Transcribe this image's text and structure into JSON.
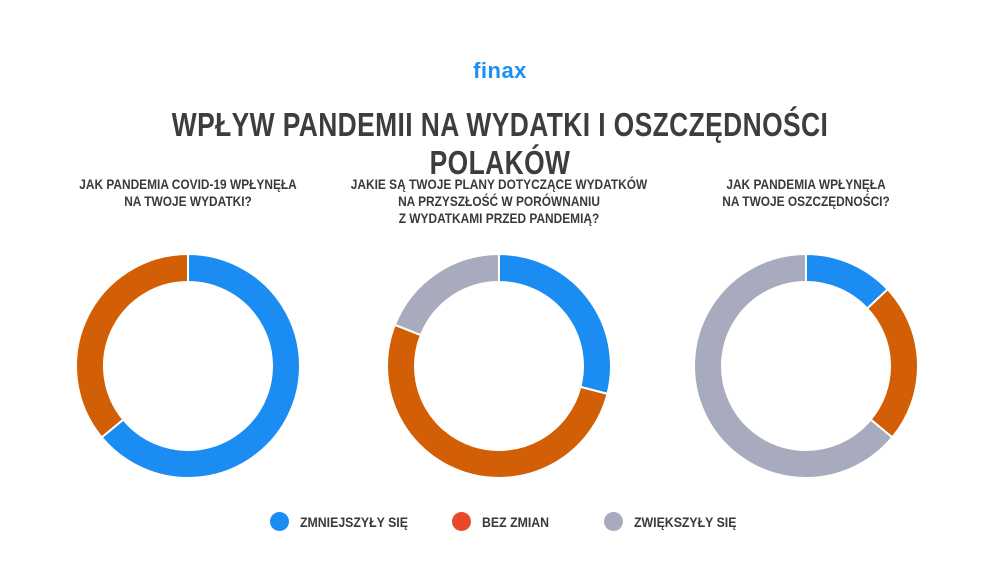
{
  "logo": "finax",
  "title": "WPŁYW PANDEMII NA WYDATKI I OSZCZĘDNOŚCI POLAKÓW",
  "colors": {
    "zmniejszyly": "#1a8cf2",
    "bez_zmian": "#d25f05",
    "zwiekszyly": "#a8abbd"
  },
  "legend": [
    {
      "label": "ZMNIEJSZYŁY SIĘ",
      "color": "#1a8cf2",
      "dot_color": "#1a8cf2"
    },
    {
      "label": "BEZ ZMIAN",
      "color": "#d25f05",
      "dot_color": "#e8492b"
    },
    {
      "label": "ZWIĘKSZYŁY SIĘ",
      "color": "#a8abbd",
      "dot_color": "#a8abbd"
    }
  ],
  "chart_data": [
    {
      "type": "pie",
      "title": "JAK PANDEMIA COVID-19 WPŁYNĘŁA NA TWOJE WYDATKI?",
      "title_lines": [
        "JAK PANDEMIA COVID-19 WPŁYNĘŁA",
        "NA TWOJE WYDATKI?"
      ],
      "categories": [
        "ZMNIEJSZYŁY SIĘ",
        "BEZ ZMIAN",
        "ZWIĘKSZYŁY SIĘ"
      ],
      "values": [
        64,
        36,
        0
      ]
    },
    {
      "type": "pie",
      "title": "JAKIE SĄ TWOJE PLANY DOTYCZĄCE WYDATKÓW NA PRZYSZŁOŚĆ W PORÓWNANIU Z WYDATKAMI PRZED PANDEMIĄ?",
      "title_lines": [
        "JAKIE SĄ TWOJE PLANY DOTYCZĄCE WYDATKÓW",
        "NA PRZYSZŁOŚĆ W PORÓWNANIU",
        "Z WYDATKAMI PRZED PANDEMIĄ?"
      ],
      "categories": [
        "ZMNIEJSZYŁY SIĘ",
        "BEZ ZMIAN",
        "ZWIĘKSZYŁY SIĘ"
      ],
      "values": [
        29,
        52,
        19
      ]
    },
    {
      "type": "pie",
      "title": "JAK PANDEMIA WPŁYNĘŁA NA TWOJE OSZCZĘDNOŚCI?",
      "title_lines": [
        "JAK PANDEMIA WPŁYNĘŁA",
        "NA TWOJE OSZCZĘDNOŚCI?"
      ],
      "categories": [
        "ZMNIEJSZYŁY SIĘ",
        "BEZ ZMIAN",
        "ZWIĘKSZYŁY SIĘ"
      ],
      "values": [
        13,
        23,
        64
      ]
    }
  ]
}
